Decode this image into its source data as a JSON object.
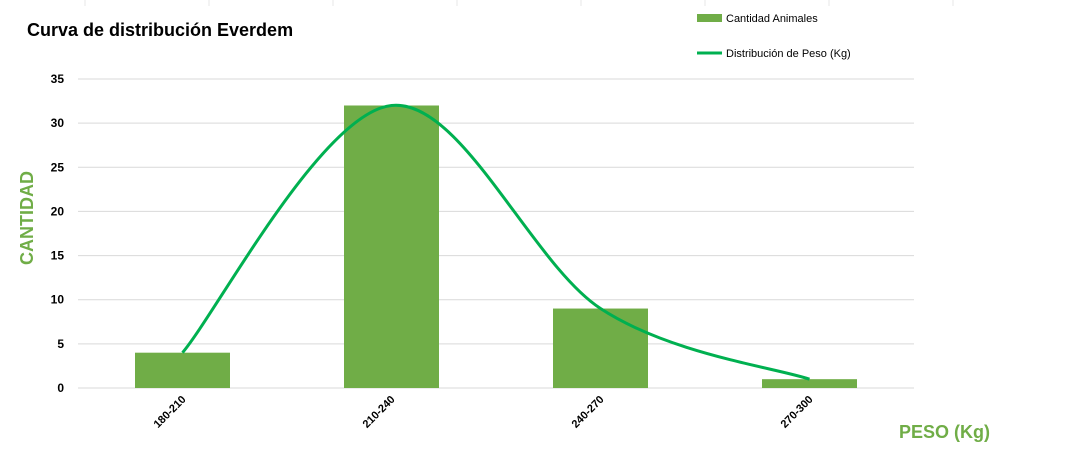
{
  "colors": {
    "bar": "#70AD47",
    "line": "#00B050",
    "axis_title": "#70AD47",
    "gridline": "#D9D9D9",
    "sheet_grid": "#E7E7E7"
  },
  "chart_data": {
    "type": "bar",
    "title": "Curva de distribución Everdem",
    "xlabel": "PESO (Kg)",
    "ylabel": "CANTIDAD",
    "categories": [
      "180-210",
      "210-240",
      "240-270",
      "270-300"
    ],
    "ylim": [
      0,
      35
    ],
    "yticks": [
      0,
      5,
      10,
      15,
      20,
      25,
      30,
      35
    ],
    "grid": true,
    "legend_position": "top-right",
    "series": [
      {
        "name": "Cantidad Animales",
        "kind": "bar",
        "values": [
          4,
          32,
          9,
          1
        ]
      },
      {
        "name": "Distribución de Peso (Kg)",
        "kind": "smooth-line",
        "values": [
          4,
          32,
          9,
          1
        ]
      }
    ]
  }
}
